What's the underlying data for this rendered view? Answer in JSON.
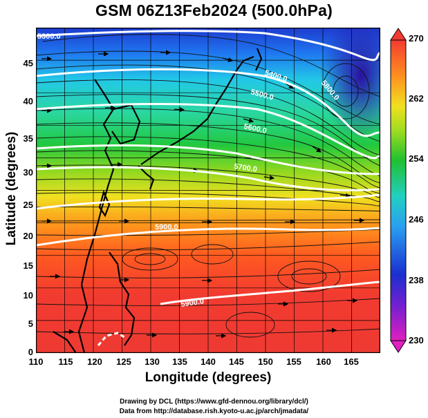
{
  "title": "GSM 06Z13Feb2024 (500.0hPa)",
  "x_axis": {
    "label": "Longitude (degrees)",
    "ticks": [
      "110",
      "115",
      "120",
      "125",
      "130",
      "135",
      "140",
      "145",
      "150",
      "155",
      "160",
      "165"
    ],
    "range": [
      110,
      170
    ]
  },
  "y_axis": {
    "label": "Latitude  (degrees)",
    "ticks": [
      "0",
      "5",
      "10",
      "15",
      "20",
      "25",
      "30",
      "35",
      "40",
      "45"
    ],
    "range": [
      0,
      50
    ]
  },
  "colorbar": {
    "ticks": [
      "230",
      "238",
      "246",
      "254",
      "262",
      "270"
    ],
    "range": [
      230,
      270
    ],
    "colors": [
      "#e020c0",
      "#1a2fd0",
      "#2aa0f0",
      "#20c030",
      "#f0e020",
      "#ff9020",
      "#f23b30"
    ]
  },
  "contours": [
    {
      "label": "5300.0"
    },
    {
      "label": "5400.0"
    },
    {
      "label": "5500.0"
    },
    {
      "label": "5600.0"
    },
    {
      "label": "5700.0"
    },
    {
      "label": "5800.0"
    },
    {
      "label": "5900.0"
    },
    {
      "label": "5900.0"
    }
  ],
  "credits": [
    "Drawing by DCL (https://www.gfd-dennou.org/library/dcl/)",
    "Data from http://database.rish.kyoto-u.ac.jp/arch/jmadata/"
  ]
}
